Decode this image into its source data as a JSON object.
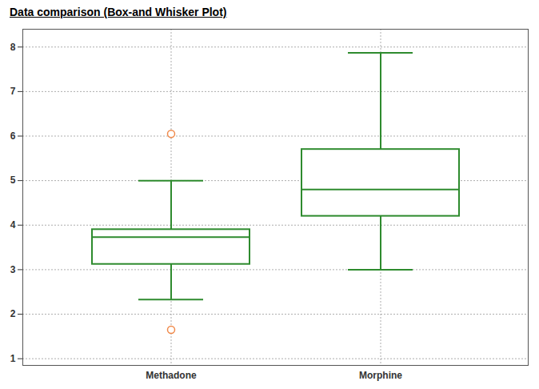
{
  "chart_data": {
    "type": "box",
    "title": "Data comparison (Box-and Whisker Plot)",
    "categories": [
      "Methadone",
      "Morphine"
    ],
    "whisker_low": [
      2.33,
      3.0
    ],
    "q1": [
      3.12,
      4.2
    ],
    "median": [
      3.73,
      4.8
    ],
    "q3": [
      3.9,
      5.7
    ],
    "whisker_high": [
      5.0,
      7.87
    ],
    "outliers": [
      [
        6.05,
        1.65
      ],
      []
    ],
    "color": "#2e8b2e",
    "marker": "circle",
    "ylim": [
      0.85,
      8.4
    ],
    "yticks": [
      1,
      2,
      3,
      4,
      5,
      6,
      7,
      8
    ],
    "grid": true
  }
}
